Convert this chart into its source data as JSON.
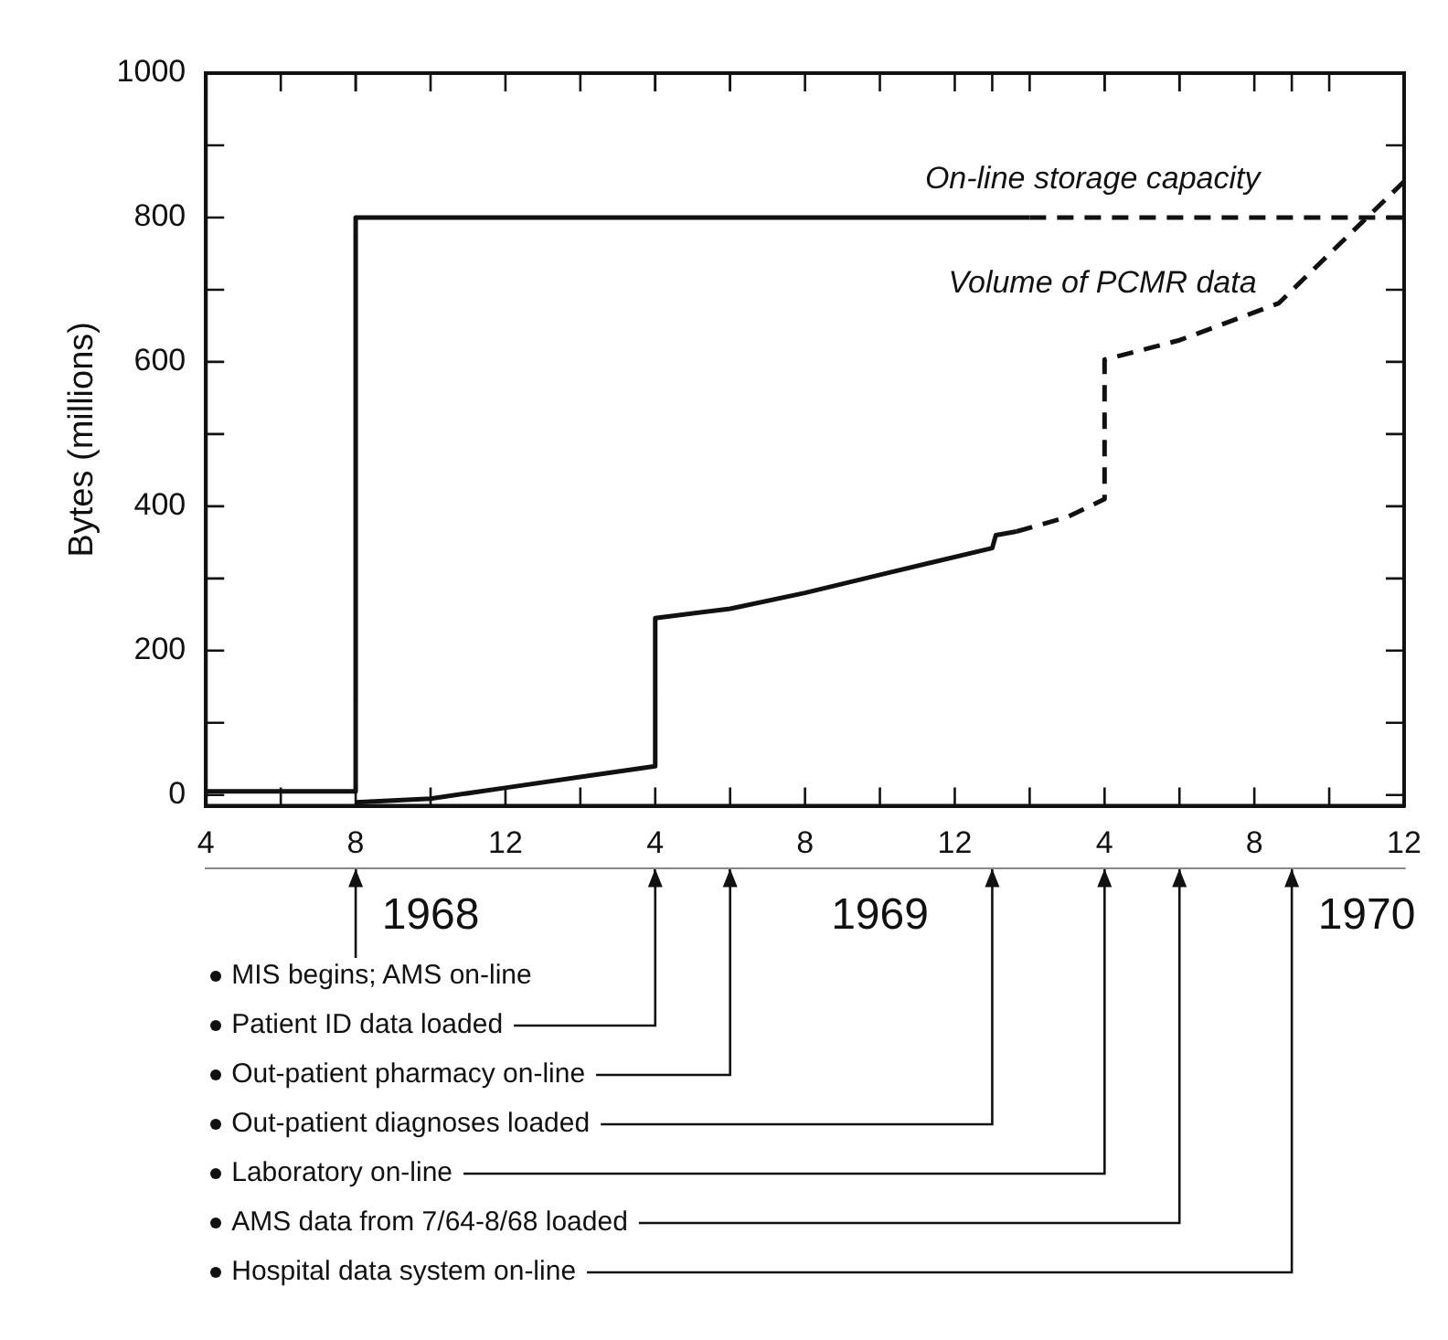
{
  "chart_data": {
    "type": "line",
    "ylabel": "Bytes (millions)",
    "xlim": [
      "1968-04",
      "1970-12"
    ],
    "xticks": [
      {
        "value": "1968-04",
        "label": "4"
      },
      {
        "value": "1968-06",
        "label": null
      },
      {
        "value": "1968-08",
        "label": "8"
      },
      {
        "value": "1968-10",
        "label": null
      },
      {
        "value": "1968-12",
        "label": "12"
      },
      {
        "value": "1969-02",
        "label": null
      },
      {
        "value": "1969-04",
        "label": "4"
      },
      {
        "value": "1969-06",
        "label": null
      },
      {
        "value": "1969-08",
        "label": "8"
      },
      {
        "value": "1969-10",
        "label": null
      },
      {
        "value": "1969-12",
        "label": "12"
      },
      {
        "value": "1970-02",
        "label": null
      },
      {
        "value": "1970-04",
        "label": "4"
      },
      {
        "value": "1970-06",
        "label": null
      },
      {
        "value": "1970-08",
        "label": "8"
      },
      {
        "value": "1970-10",
        "label": null
      },
      {
        "value": "1970-12",
        "label": "12"
      }
    ],
    "ylim": [
      -15,
      1000
    ],
    "yticks": [
      0,
      {
        "value": 100,
        "label": null
      },
      200,
      {
        "value": 300,
        "label": null
      },
      400,
      {
        "value": 500,
        "label": null
      },
      600,
      {
        "value": 700,
        "label": null
      },
      800,
      {
        "value": 900,
        "label": null
      },
      1000
    ],
    "x2lim": [
      "1968-04",
      "1970-12"
    ],
    "x2ticks": [
      {
        "value": "1968-08",
        "label": null
      },
      {
        "value": "1968-10",
        "label": "1968"
      },
      {
        "value": "1969-04",
        "label": null
      },
      {
        "value": "1969-06",
        "label": null
      },
      {
        "value": "1969-10",
        "label": "1969"
      },
      {
        "value": "1970-01",
        "label": null
      },
      {
        "value": "1970-04",
        "label": null
      },
      {
        "value": "1970-06",
        "label": null
      },
      {
        "value": "1970-09",
        "label": null
      },
      {
        "value": "1970-11",
        "label": "1970"
      }
    ],
    "series": [
      {
        "color": "#111111",
        "line_style": "solid",
        "x": [
          "1968-04",
          "1968-08",
          "1968-08",
          "1970-02"
        ],
        "values": [
          5,
          5,
          800,
          800
        ]
      },
      {
        "name": "On-line storage capacity",
        "color": "#111111",
        "line_style": "dashed",
        "x": [
          "1970-02",
          "1970-12"
        ],
        "values": [
          800,
          800
        ]
      },
      {
        "color": "#111111",
        "line_style": "solid",
        "x": [
          "1968-08",
          "1968-10",
          "1968-12",
          "1969-02",
          "1969-04",
          "1969-04",
          "1969-06",
          "1969-08",
          "1969-10",
          "1970-01",
          "1970-01-04",
          "1970-01-21"
        ],
        "values": [
          -10,
          -5,
          10,
          25,
          40,
          245,
          258,
          280,
          305,
          342,
          360,
          365
        ]
      },
      {
        "name": "Volume of PCMR data",
        "color": "#111111",
        "line_style": "dashed",
        "x": [
          "1970-01-21",
          "1970-03",
          "1970-04",
          "1970-04",
          "1970-06",
          "1970-08-21",
          "1970-12"
        ],
        "values": [
          365,
          385,
          410,
          603,
          630,
          681,
          850
        ]
      }
    ],
    "annotations": [
      "MIS begins; AMS on-line",
      "Patient ID data loaded",
      "Out-patient pharmacy on-line",
      "Out-patient diagnoses loaded",
      "Laboratory on-line",
      "AMS data from 7/64-8/68 loaded",
      "Hospital data system on-line"
    ]
  }
}
